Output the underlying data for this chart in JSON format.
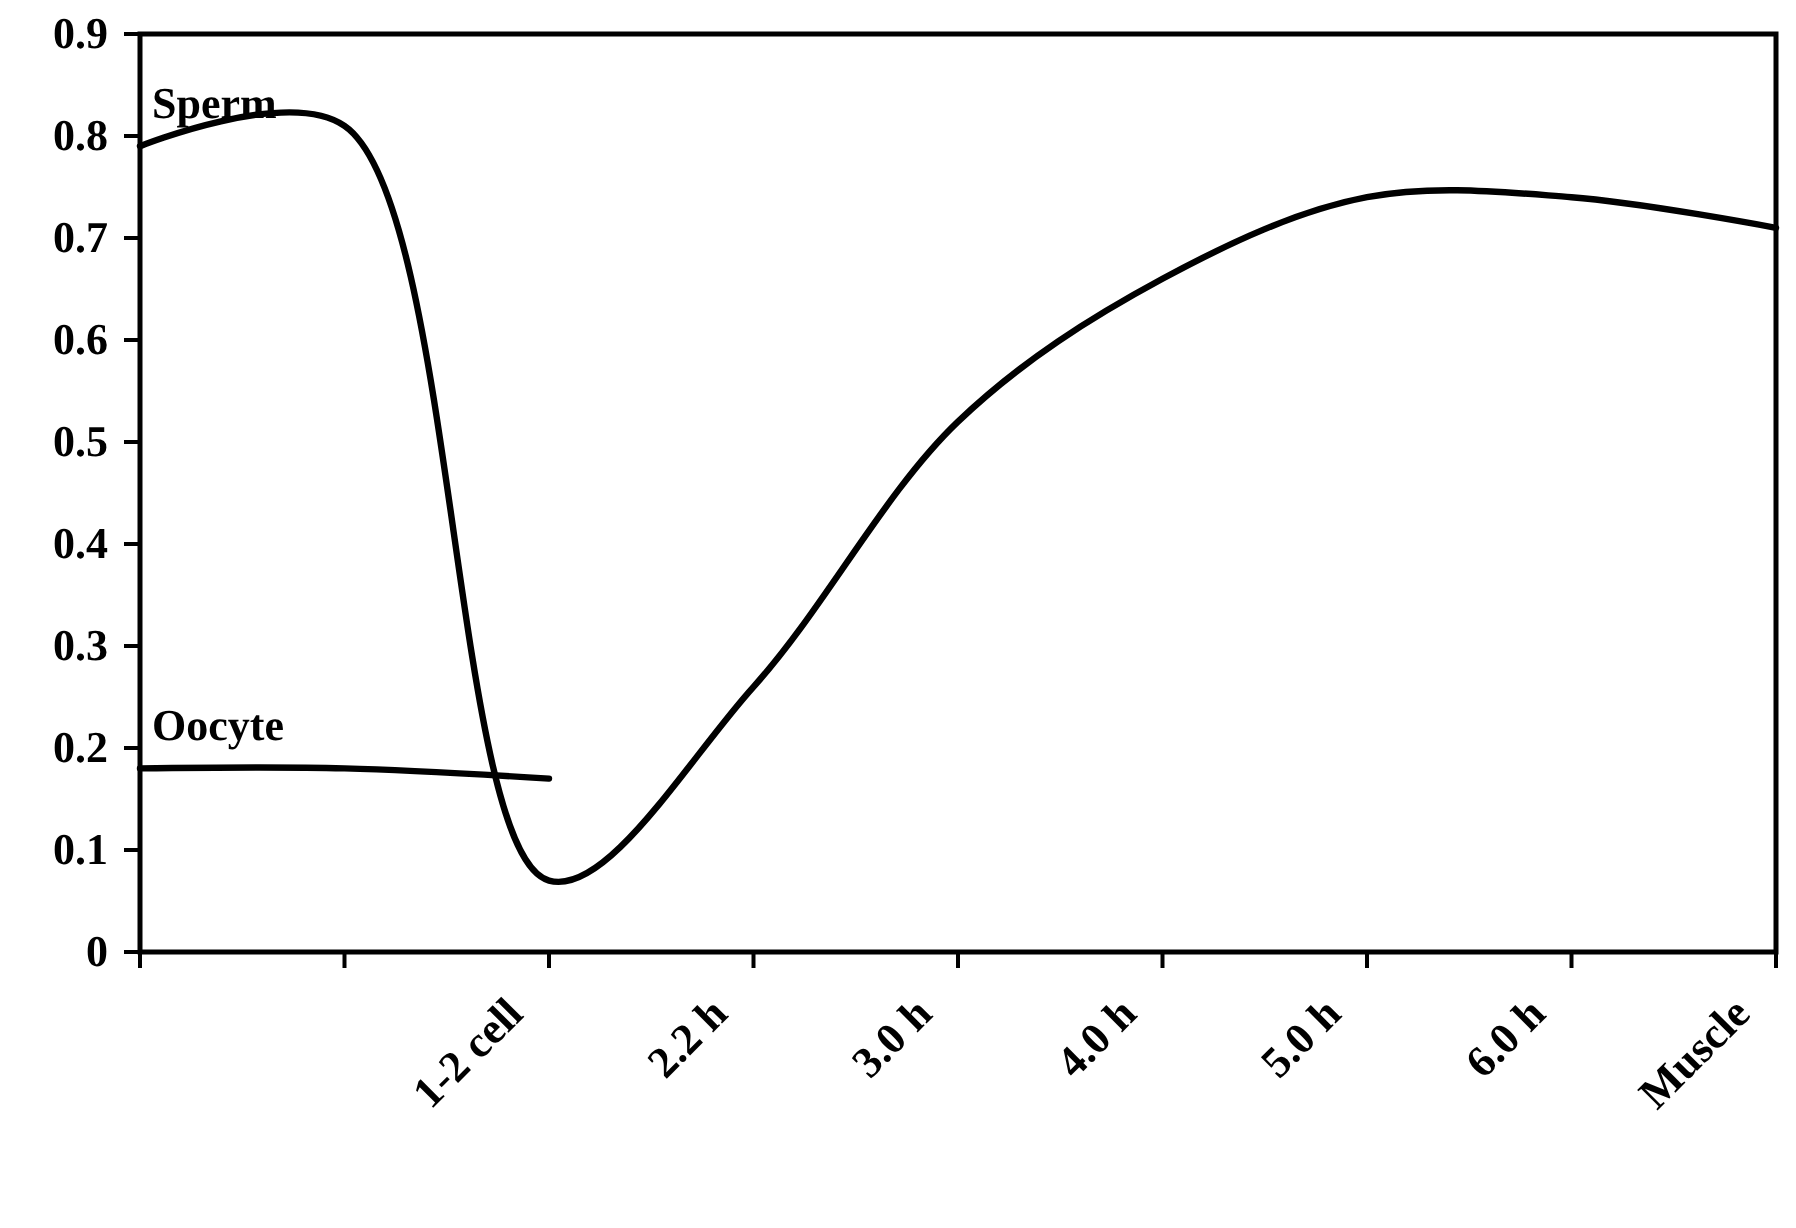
{
  "chart_data": {
    "type": "line",
    "categories": [
      null,
      null,
      "1-2 cell",
      "2.2 h",
      "3.0 h",
      "4.0 h",
      "5.0 h",
      "6.0 h",
      "Muscle"
    ],
    "series": [
      {
        "name": "Sperm",
        "color": "#000000",
        "values": [
          0.79,
          0.81,
          0.07,
          0.26,
          0.52,
          0.66,
          0.74,
          0.74,
          0.71
        ]
      },
      {
        "name": "Oocyte",
        "color": "#000000",
        "values": [
          0.18,
          0.18,
          0.17,
          null,
          null,
          null,
          null,
          null,
          null
        ]
      }
    ],
    "ylim": [
      0,
      0.9
    ],
    "yticks": [
      0,
      0.1,
      0.2,
      0.3,
      0.4,
      0.5,
      0.6,
      0.7,
      0.8,
      0.9
    ],
    "grid": false,
    "legend": "left",
    "marker": "none",
    "line_style": "solid"
  }
}
